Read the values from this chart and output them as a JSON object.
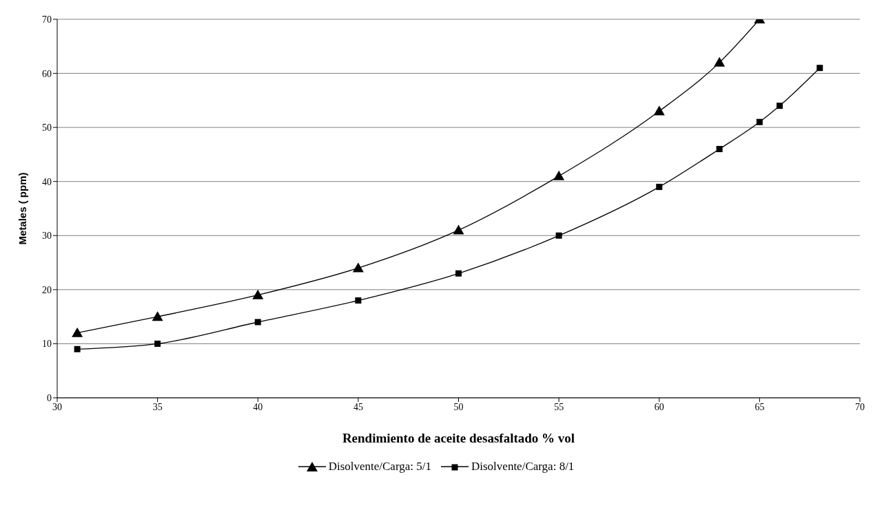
{
  "chart_data": {
    "type": "line",
    "xlabel": "Rendimiento de aceite desasfaltado % vol",
    "ylabel": "Metales ( ppm)",
    "xlim": [
      30,
      70
    ],
    "xticks": [
      30,
      35,
      40,
      45,
      50,
      55,
      60,
      65,
      70
    ],
    "ylim": [
      0,
      70
    ],
    "yticks": [
      0,
      10,
      20,
      30,
      40,
      50,
      60,
      70
    ],
    "grid": "y",
    "legend": "bottom",
    "line_style": "solid",
    "series": [
      {
        "name": "Disolvente/Carga: 5/1",
        "color": "#000000",
        "marker": "triangle",
        "x": [
          31,
          35,
          40,
          45,
          50,
          55,
          60,
          63,
          65
        ],
        "values": [
          12,
          15,
          19,
          24,
          31,
          41,
          53,
          62,
          70
        ]
      },
      {
        "name": "Disolvente/Carga: 8/1",
        "color": "#000000",
        "marker": "square",
        "x": [
          31,
          35,
          40,
          45,
          50,
          55,
          60,
          63,
          65,
          66,
          68
        ],
        "values": [
          9,
          10,
          14,
          18,
          23,
          30,
          39,
          46,
          51,
          54,
          61
        ]
      }
    ]
  }
}
